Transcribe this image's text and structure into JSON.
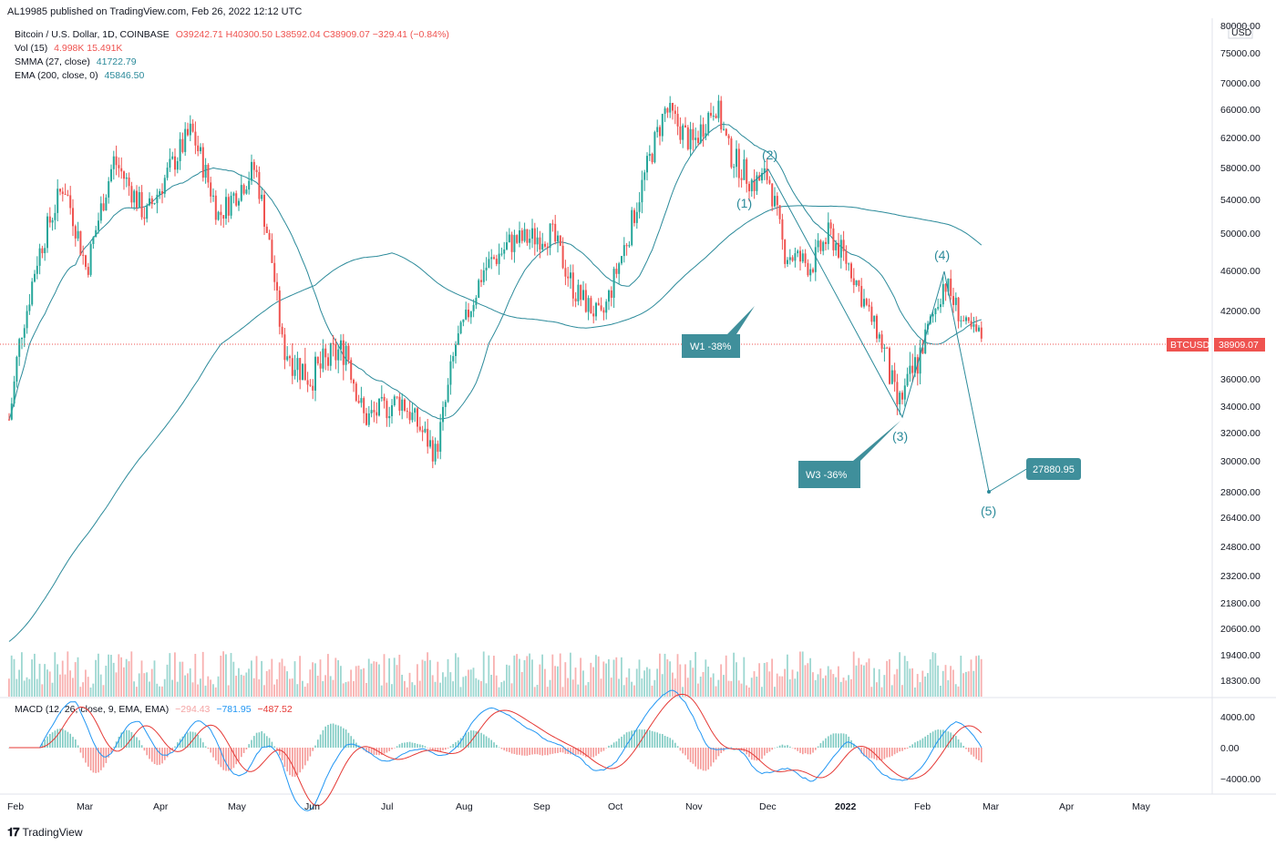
{
  "header": {
    "published": "AL19985 published on TradingView.com, Feb 26, 2022 12:12 UTC"
  },
  "legend": {
    "symbol": "Bitcoin / U.S. Dollar, 1D, COINBASE",
    "ohlc": "O39242.71 H40300.50 L38592.04 C38909.07 −329.41 (−0.84%)",
    "vol_label": "Vol (15)",
    "vol_values": "4.998K  15.491K",
    "smma_label": "SMMA (27, close)",
    "smma_value": "41722.79",
    "ema_label": "EMA (200, close, 0)",
    "ema_value": "45846.50",
    "macd_label": "MACD (12, 26, close, 9, EMA, EMA)",
    "macd_v1": "−294.43",
    "macd_v2": "−781.95",
    "macd_v3": "−487.52"
  },
  "colors": {
    "up": "#26a69a",
    "down": "#ef5350",
    "ma": "#2b8a9a",
    "macd_line": "#2196f3",
    "signal_line": "#e53935",
    "label_bg": "#3f8f9b",
    "price_tag": "#ef5350"
  },
  "price_axis": {
    "currency": "USD",
    "ticks": [
      "80000.00",
      "75000.00",
      "70000.00",
      "66000.00",
      "62000.00",
      "58000.00",
      "54000.00",
      "50000.00",
      "46000.00",
      "42000.00",
      "38000.00",
      "36000.00",
      "34000.00",
      "32000.00",
      "30000.00",
      "28000.00",
      "26400.00",
      "24800.00",
      "23200.00",
      "21800.00",
      "20600.00",
      "19400.00",
      "18300.00"
    ],
    "current_symbol": "BTCUSD",
    "current_price": "38909.07"
  },
  "macd_axis": {
    "ticks": [
      "4000.00",
      "0.00",
      "−4000.00"
    ]
  },
  "time_axis": {
    "labels": [
      "Feb",
      "Mar",
      "Apr",
      "May",
      "Jun",
      "Jul",
      "Aug",
      "Sep",
      "Oct",
      "Nov",
      "Dec",
      "2022",
      "Feb",
      "Mar",
      "Apr",
      "May"
    ]
  },
  "annotations": {
    "w1": "W1 -38%",
    "w3": "W3 -36%",
    "target": "27880.95",
    "waves": [
      "(1)",
      "(2)",
      "(3)",
      "(4)",
      "(5)"
    ]
  },
  "chart_data": {
    "type": "candlestick",
    "title": "Bitcoin / U.S. Dollar, 1D, COINBASE",
    "price_anchors": {
      "months": [
        "Feb-2021",
        "Mar-2021",
        "Apr-2021",
        "May-2021",
        "Jun-2021",
        "Jul-2021",
        "Aug-2021",
        "Sep-2021",
        "Oct-2021",
        "Nov-2021",
        "Dec-2021",
        "Jan-2022",
        "Feb-2022",
        "Feb-26-2022"
      ],
      "approx_close": [
        33000,
        48000,
        58000,
        57000,
        37000,
        35000,
        40000,
        47000,
        44000,
        61000,
        57000,
        47000,
        38500,
        38909.07
      ]
    },
    "smma_27_last": 41722.79,
    "ema_200_last": 45846.5,
    "wave_points": [
      {
        "label": "(1)",
        "price": 55000
      },
      {
        "label": "(2)",
        "price": 59000
      },
      {
        "label": "(3)",
        "price": 33000
      },
      {
        "label": "(4)",
        "price": 45500
      },
      {
        "label": "(5)",
        "price": 27880.95
      }
    ],
    "ylim": [
      18300,
      80000
    ],
    "macd_ylim": [
      -6000,
      5000
    ]
  },
  "footer": {
    "brand": "TradingView"
  }
}
